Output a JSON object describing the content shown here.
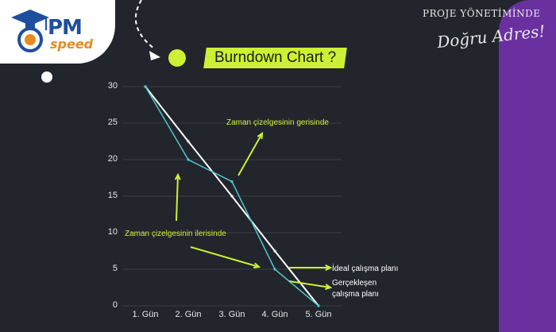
{
  "logo": {
    "pm": "PM",
    "speed": "speed"
  },
  "brand": {
    "top": "PROJE YÖNETİMİNDE",
    "signature": "Doğru Adres!"
  },
  "title": "Burndown Chart ?",
  "colors": {
    "ideal": "#ffffff",
    "actual": "#4fc6cf",
    "accent": "#cdf034",
    "purple": "#6a30a0",
    "background": "#23252c"
  },
  "chart_data": {
    "type": "line",
    "title": "Burndown Chart ?",
    "categories": [
      "1. Gün",
      "2. Gün",
      "3. Gün",
      "4. Gün",
      "5. Gün"
    ],
    "y_ticks": [
      0,
      5,
      10,
      15,
      20,
      25,
      30
    ],
    "ylim": [
      0,
      30
    ],
    "grid": true,
    "series": [
      {
        "name": "İdeal çalışma planı",
        "values": [
          30,
          22.5,
          15,
          7.5,
          0
        ]
      },
      {
        "name": "Gerçekleşen çalışma planı",
        "values": [
          30,
          20,
          17,
          5,
          0
        ]
      }
    ],
    "annotations": {
      "behind": "Zaman çizelgesinin gerisinde",
      "ahead": "Zaman çizelgesinin ilerisinde",
      "ideal_label": "İdeal çalışma planı",
      "actual_label_line1": "Gerçekleşen",
      "actual_label_line2": "çalışma planı"
    }
  }
}
